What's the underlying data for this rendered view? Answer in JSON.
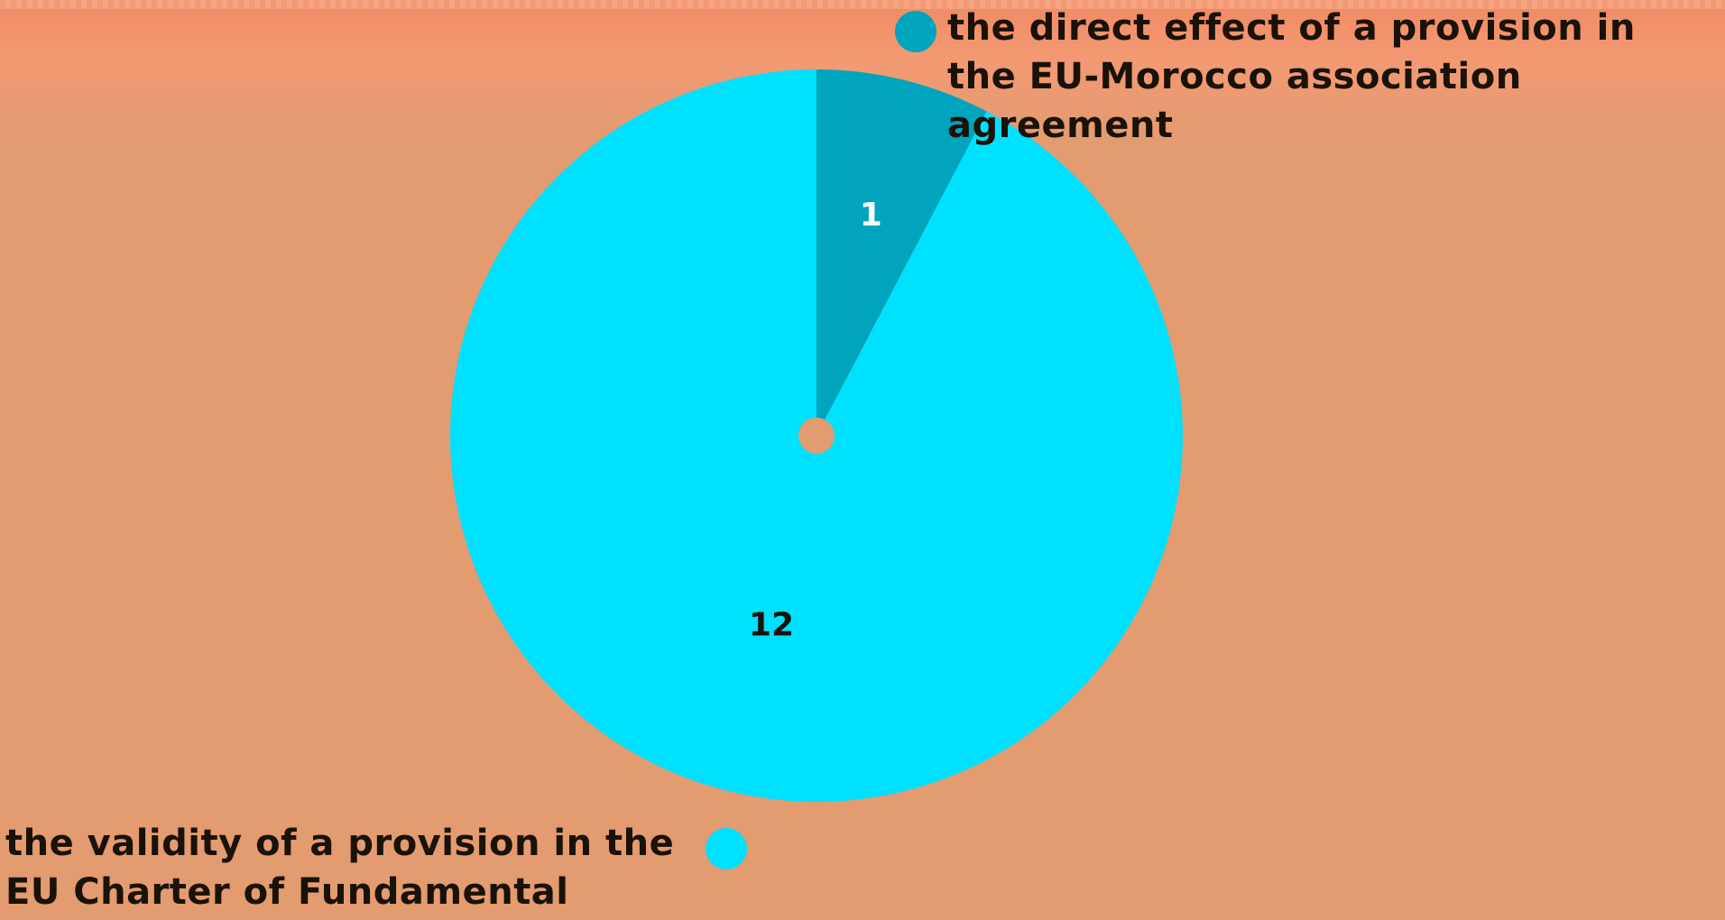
{
  "chart_data": {
    "type": "pie",
    "title": "",
    "slices": [
      {
        "label": "the direct effect of a provision in the EU-Morocco association agreement",
        "value": 1,
        "data_label": "1",
        "color": "#00a5bd"
      },
      {
        "label": "the validity of a provision in the EU Charter of Fundamental Rights",
        "value": 12,
        "data_label": "12",
        "color": "#00e0ff"
      }
    ],
    "legend": {
      "entries": [
        "the direct effect of a provision in the EU-Morocco association agreement",
        "the validity of a provision in the EU Charter of Fundamental Rights"
      ],
      "placement": "top-right and bottom-left"
    }
  },
  "colors": {
    "background": "#e39b70",
    "label_text": "#1a1208",
    "slice_label_light": "#ffffff",
    "slice_label_dark": "#1a1208",
    "center_hole": "#e39b70"
  }
}
